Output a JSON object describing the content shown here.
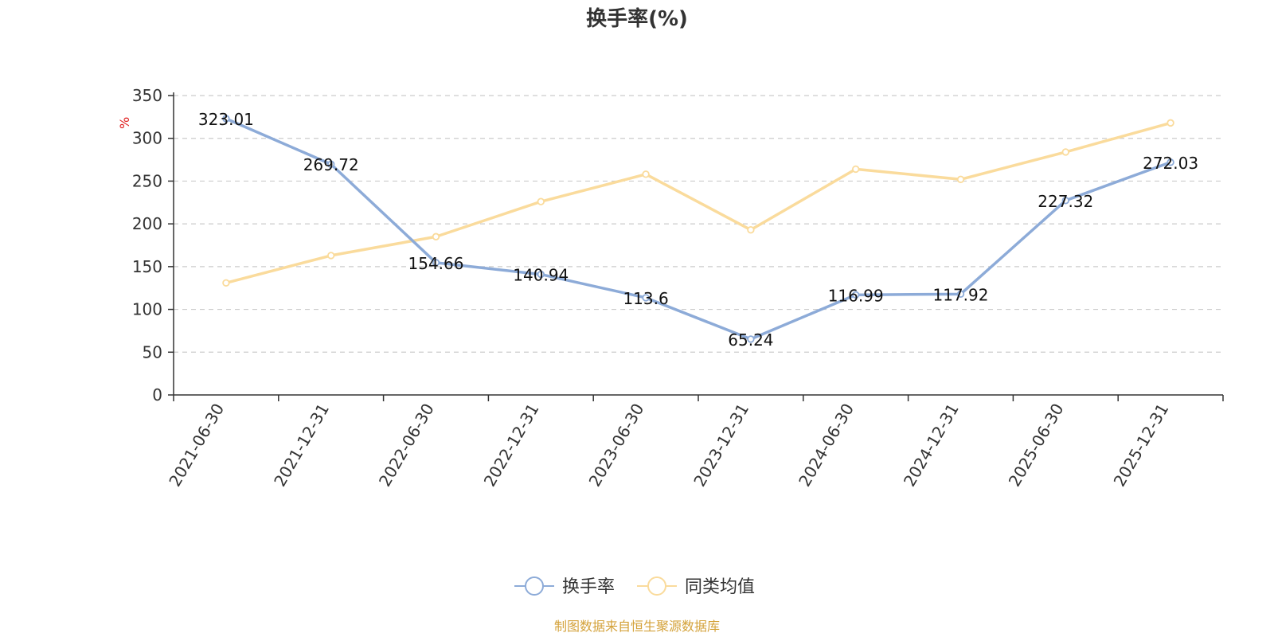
{
  "chart_data": {
    "type": "line",
    "title": "换手率(%)",
    "ylabel": "%",
    "xlabel": "",
    "ylim": [
      0,
      350
    ],
    "yticks": [
      0,
      50,
      100,
      150,
      200,
      250,
      300,
      350
    ],
    "categories": [
      "2021-06-30",
      "2021-12-31",
      "2022-06-30",
      "2022-12-31",
      "2023-06-30",
      "2023-12-31",
      "2024-06-30",
      "2024-12-31",
      "2025-06-30",
      "2025-12-31"
    ],
    "series": [
      {
        "name": "换手率",
        "color": "#8dabd8",
        "values": [
          323.01,
          269.72,
          154.66,
          140.94,
          113.6,
          65.24,
          116.99,
          117.92,
          227.32,
          272.03
        ],
        "labels": [
          "323.01",
          "269.72",
          "154.66",
          "140.94",
          "113.6",
          "65.24",
          "116.99",
          "117.92",
          "227.32",
          "272.03"
        ]
      },
      {
        "name": "同类均值",
        "color": "#fadb9c",
        "values": [
          131,
          163,
          185,
          226,
          258,
          193,
          264,
          252,
          284,
          318
        ]
      }
    ],
    "grid": true,
    "legend_position": "bottom-center"
  },
  "source_text": "制图数据来自恒生聚源数据库",
  "colors": {
    "axis": "#333333",
    "grid": "#cccccc",
    "unit": "#e02020",
    "source": "#d4a23a"
  }
}
